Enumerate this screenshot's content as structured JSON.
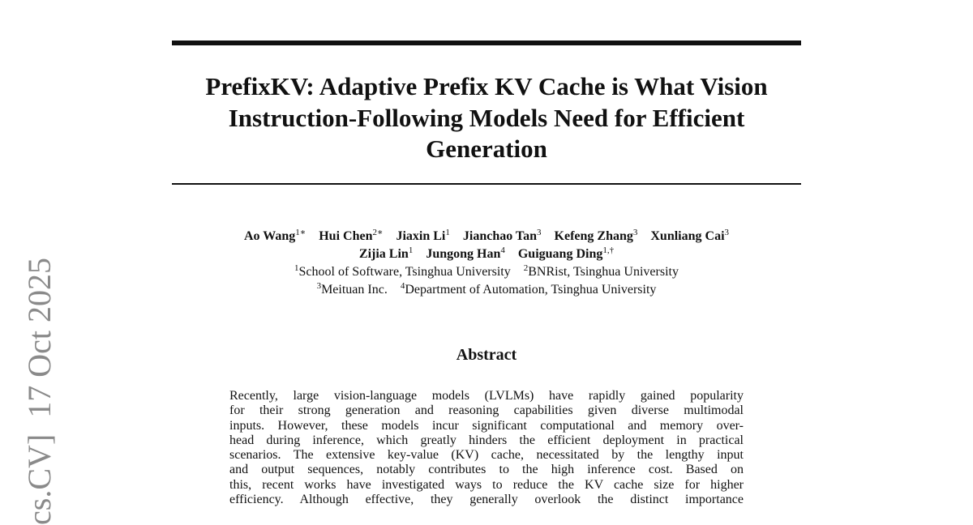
{
  "stamp": "cs.CV]  17 Oct 2025",
  "title": {
    "lines": [
      "PrefixKV: Adaptive Prefix KV Cache is What Vision",
      "Instruction-Following Models Need for Efficient",
      "Generation"
    ]
  },
  "authors": [
    [
      {
        "name": "Ao Wang",
        "sup": "1∗"
      },
      {
        "name": "Hui Chen",
        "sup": "2∗"
      },
      {
        "name": "Jiaxin Li",
        "sup": "1"
      },
      {
        "name": "Jianchao Tan",
        "sup": "3"
      },
      {
        "name": "Kefeng Zhang",
        "sup": "3"
      },
      {
        "name": "Xunliang Cai",
        "sup": "3"
      }
    ],
    [
      {
        "name": "Zijia Lin",
        "sup": "1"
      },
      {
        "name": "Jungong Han",
        "sup": "4"
      },
      {
        "name": "Guiguang Ding",
        "sup": "1,†"
      }
    ]
  ],
  "affiliations": [
    [
      {
        "sup": "1",
        "text": "School of Software, Tsinghua University"
      },
      {
        "sup": "2",
        "text": "BNRist, Tsinghua University"
      }
    ],
    [
      {
        "sup": "3",
        "text": "Meituan Inc."
      },
      {
        "sup": "4",
        "text": "Department of Automation, Tsinghua University"
      }
    ]
  ],
  "abstract": {
    "heading": "Abstract",
    "lines": [
      "Recently, large vision-language models (LVLMs) have rapidly gained popularity",
      "for their strong generation and reasoning capabilities given diverse multimodal",
      "inputs. However, these models incur significant computational and memory over-",
      "head during inference, which greatly hinders the efficient deployment in practical",
      "scenarios. The extensive key-value (KV) cache, necessitated by the lengthy input",
      "and output sequences, notably contributes to the high inference cost. Based on",
      "this, recent works have investigated ways to reduce the KV cache size for higher",
      "efficiency. Although effective, they generally overlook the distinct importance"
    ]
  }
}
